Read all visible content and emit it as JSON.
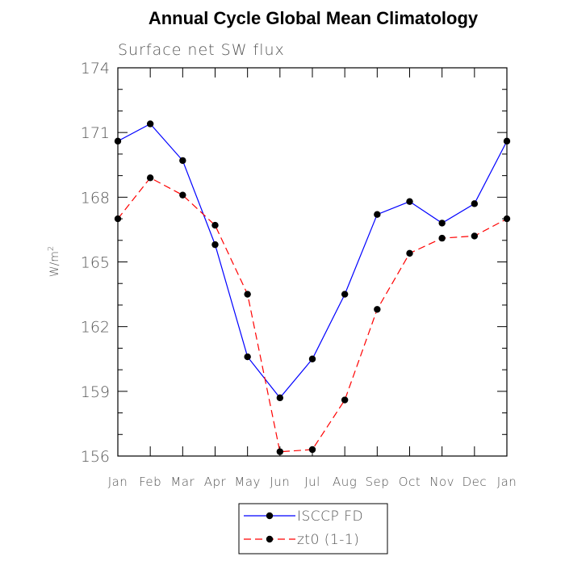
{
  "chart_data": {
    "type": "line",
    "title": "Annual Cycle Global Mean Climatology",
    "subtitle": "Surface net SW flux",
    "ylabel": "W/m",
    "ylabel_superscript": "2",
    "xlabel": "",
    "categories": [
      "Jan",
      "Feb",
      "Mar",
      "Apr",
      "May",
      "Jun",
      "Jul",
      "Aug",
      "Sep",
      "Oct",
      "Nov",
      "Dec",
      "Jan"
    ],
    "ylim": [
      156,
      174
    ],
    "yticks": [
      "156",
      "159",
      "162",
      "165",
      "168",
      "171",
      "174"
    ],
    "legend_position": "bottom-center",
    "grid": false,
    "series": [
      {
        "name": "ISCCP FD",
        "color": "#0000ff",
        "style": "solid",
        "marker": "filled-circle",
        "values": [
          170.6,
          171.4,
          169.7,
          165.8,
          160.6,
          158.7,
          160.5,
          163.5,
          167.2,
          167.8,
          166.8,
          167.7,
          170.6
        ]
      },
      {
        "name": "zt0 (1-1)",
        "color": "#ff0000",
        "style": "dashed",
        "marker": "filled-circle",
        "values": [
          167.0,
          168.9,
          168.1,
          166.7,
          163.5,
          156.2,
          156.3,
          158.6,
          162.8,
          165.4,
          166.1,
          166.2,
          167.0
        ]
      }
    ]
  }
}
